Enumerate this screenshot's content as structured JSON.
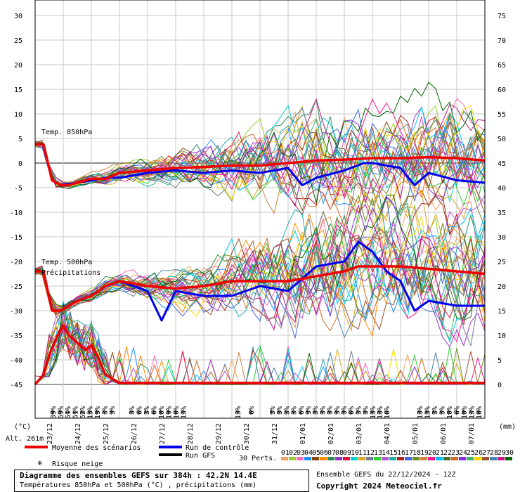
{
  "chart_data": {
    "type": "line",
    "title": "Diagramme des ensembles GEFS sur 384h : 42.2N 14.4E",
    "subtitle": "Températures 850hPa et 500hPa (°C) , précipitations (mm)",
    "left_axis": {
      "unit": "(°C)",
      "ticks": [
        30,
        25,
        20,
        15,
        10,
        5,
        0,
        -5,
        -10,
        -15,
        -20,
        -25,
        -30,
        -35,
        -40,
        -45
      ],
      "range": [
        -45,
        30
      ]
    },
    "right_axis": {
      "unit": "(mm)",
      "ticks": [
        75,
        70,
        65,
        60,
        55,
        50,
        45,
        40,
        35,
        30,
        25,
        20,
        15,
        10,
        5,
        0
      ],
      "range": [
        0,
        75
      ]
    },
    "x_labels": [
      "23/12",
      "24/12",
      "25/12",
      "26/12",
      "27/12",
      "28/12",
      "29/12",
      "30/12",
      "31/12",
      "01/01",
      "02/01",
      "03/01",
      "04/01",
      "05/01",
      "06/01",
      "07/01"
    ],
    "altitude": "Alt. 261m",
    "annotations": [
      "Temp. 850hPa",
      "Temp. 500hPa",
      "Précipitations"
    ],
    "legend": {
      "mean": "Moyenne des scénarios",
      "control": "Run de contrôle",
      "gfs": "Run GFS",
      "snow": "Risque neige",
      "perts": "30 Perts.",
      "pert_numbers": [
        "01",
        "02",
        "03",
        "04",
        "05",
        "06",
        "07",
        "08",
        "09",
        "10",
        "11",
        "12",
        "13",
        "14",
        "15",
        "16",
        "17",
        "18",
        "19",
        "20",
        "21",
        "22",
        "23",
        "24",
        "25",
        "26",
        "27",
        "28",
        "29",
        "30"
      ]
    },
    "snow_risk": [
      "39%",
      "69%",
      "61%",
      "61%",
      "52%",
      "13%",
      "19%",
      "3%",
      "3%",
      "3%",
      "6%",
      "3%",
      "6%",
      "10%",
      "19%",
      "10%",
      "13%",
      "13%",
      "6%",
      "3%",
      "3%",
      "3%",
      "3%",
      "6%",
      "3%",
      "3%",
      "3%",
      "3%",
      "3%",
      "3%",
      "6%",
      "3%",
      "3%",
      "13%",
      "13%",
      "16%",
      "13%",
      "13%",
      "3%",
      "3%",
      "10%",
      "6%",
      "10%",
      "13%",
      "10%"
    ],
    "series": [
      {
        "name": "Moyenne des scénarios (850hPa)",
        "t": [
          0,
          0.3,
          0.6,
          0.9,
          1.2,
          1.5,
          2,
          2.5,
          3,
          4,
          5,
          6,
          7,
          8,
          9,
          10,
          11,
          12,
          13,
          14,
          15,
          16
        ],
        "values": [
          3.8,
          3.8,
          -3.5,
          -4.5,
          -4.5,
          -4,
          -3.2,
          -3.2,
          -2,
          -1.5,
          -1,
          -0.8,
          -0.5,
          -0.5,
          0,
          0.5,
          0.7,
          1,
          1,
          1.2,
          1,
          0.5
        ]
      },
      {
        "name": "Run de contrôle (850hPa)",
        "t": [
          0,
          0.3,
          0.6,
          0.9,
          1.5,
          2,
          2.5,
          3,
          4,
          5,
          6,
          7,
          8,
          9,
          9.5,
          10,
          11,
          11.7,
          12,
          13,
          13.5,
          14,
          15,
          16
        ],
        "values": [
          3.8,
          3.8,
          -3.5,
          -4.5,
          -4,
          -3.5,
          -3,
          -3,
          -2,
          -1.5,
          -2,
          -1.5,
          -2,
          -1,
          -4.5,
          -3,
          -1.5,
          0,
          0,
          -1,
          -4.5,
          -2,
          -3.5,
          -4
        ]
      },
      {
        "name": "Moyenne des scénarios (500hPa)",
        "t": [
          0,
          0.3,
          0.6,
          0.9,
          1.5,
          2,
          2.5,
          3,
          4,
          5,
          6,
          7,
          8,
          9,
          10,
          11,
          11.5,
          12,
          13,
          14,
          15,
          16
        ],
        "values": [
          -22,
          -22,
          -30,
          -30,
          -28,
          -27,
          -25,
          -24,
          -25,
          -25.5,
          -25,
          -24,
          -24,
          -24,
          -23,
          -22,
          -21,
          -21,
          -21,
          -21.5,
          -22,
          -22.5
        ]
      },
      {
        "name": "Run de contrôle (500hPa)",
        "t": [
          0,
          0.3,
          0.6,
          0.9,
          1.5,
          2,
          2.5,
          3,
          4,
          4.5,
          5,
          6,
          7,
          8,
          9,
          10,
          11,
          11.5,
          12,
          12.5,
          13,
          13.5,
          14,
          15,
          16
        ],
        "values": [
          -22,
          -22,
          -30,
          -30,
          -28,
          -27,
          -25,
          -24,
          -26,
          -32,
          -26,
          -27,
          -27,
          -25,
          -26,
          -21,
          -20,
          -16,
          -18,
          -22,
          -24,
          -30,
          -28,
          -29,
          -29
        ]
      },
      {
        "name": "Moyenne des scénarios (précipitations)",
        "t": [
          0,
          0.3,
          0.5,
          0.8,
          1,
          1.2,
          1.4,
          1.6,
          1.8,
          2,
          2.2,
          2.5,
          3,
          16
        ],
        "values": [
          0,
          2,
          6,
          10,
          12,
          10,
          9,
          8,
          7,
          8,
          6,
          2,
          0.3,
          0.3
        ]
      }
    ]
  }
}
